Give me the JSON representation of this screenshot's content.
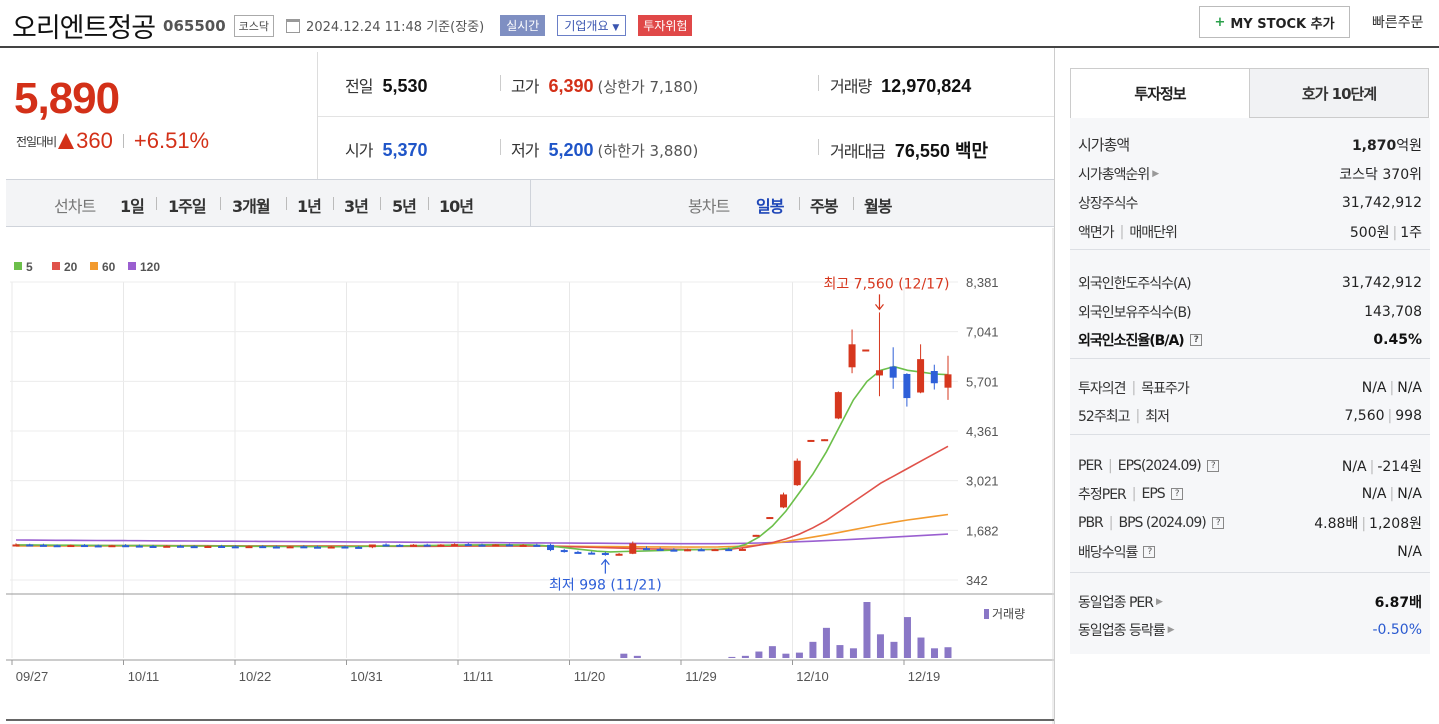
{
  "header": {
    "stock_name": "오리엔트정공",
    "stock_code": "065500",
    "market_tag": "코스닥",
    "datetime": "2024.12.24 11:48 기준(장중)",
    "realtime_tag": "실시간",
    "company_info_tag": "기업개요",
    "risk_tag": "투자위험",
    "mystock_button": "MY STOCK 추가",
    "quick_order": "빠른주문"
  },
  "price": {
    "current": "5,890",
    "change_label": "전일대비",
    "change_value": "360",
    "change_pct": "+6.51%"
  },
  "quote": {
    "prev_label": "전일",
    "prev": "5,530",
    "open_label": "시가",
    "open": "5,370",
    "high_label": "고가",
    "high": "6,390",
    "upper_limit": "(상한가 7,180)",
    "low_label": "저가",
    "low": "5,200",
    "lower_limit": "(하한가 3,880)",
    "volume_label": "거래량",
    "volume": "12,970,824",
    "amount_label": "거래대금",
    "amount": "76,550 백만"
  },
  "chart_tabs": {
    "line_label": "선차트",
    "line_options": [
      "1일",
      "1주일",
      "3개월",
      "1년",
      "3년",
      "5년",
      "10년"
    ],
    "candle_label": "봉차트",
    "candle_options": [
      "일봉",
      "주봉",
      "월봉"
    ],
    "candle_selected": "일봉"
  },
  "chart_data": {
    "type": "candlestick",
    "legend": [
      {
        "name": "5",
        "color": "#6cbf4a"
      },
      {
        "name": "20",
        "color": "#e0524a"
      },
      {
        "name": "60",
        "color": "#f29a2e"
      },
      {
        "name": "120",
        "color": "#9a5fd0"
      }
    ],
    "y_ticks": [
      "8,381",
      "7,041",
      "5,701",
      "4,361",
      "3,021",
      "1,682",
      "342"
    ],
    "ylim": [
      342,
      8381
    ],
    "x_ticks": [
      "09/27",
      "10/11",
      "10/22",
      "10/31",
      "11/11",
      "11/20",
      "11/29",
      "12/10",
      "12/19"
    ],
    "high_annotation": "최고 7,560 (12/17)",
    "low_annotation": "최저 998 (11/21)",
    "volume_label": "거래량",
    "candles": [
      {
        "o": 1280,
        "h": 1330,
        "l": 1250,
        "c": 1300
      },
      {
        "o": 1300,
        "h": 1320,
        "l": 1270,
        "c": 1290
      },
      {
        "o": 1290,
        "h": 1320,
        "l": 1260,
        "c": 1280
      },
      {
        "o": 1280,
        "h": 1300,
        "l": 1250,
        "c": 1270
      },
      {
        "o": 1270,
        "h": 1300,
        "l": 1240,
        "c": 1285
      },
      {
        "o": 1285,
        "h": 1310,
        "l": 1260,
        "c": 1275
      },
      {
        "o": 1275,
        "h": 1300,
        "l": 1240,
        "c": 1265
      },
      {
        "o": 1265,
        "h": 1290,
        "l": 1240,
        "c": 1280
      },
      {
        "o": 1280,
        "h": 1310,
        "l": 1250,
        "c": 1270
      },
      {
        "o": 1270,
        "h": 1300,
        "l": 1240,
        "c": 1260
      },
      {
        "o": 1260,
        "h": 1290,
        "l": 1230,
        "c": 1250
      },
      {
        "o": 1250,
        "h": 1280,
        "l": 1220,
        "c": 1265
      },
      {
        "o": 1265,
        "h": 1290,
        "l": 1240,
        "c": 1255
      },
      {
        "o": 1255,
        "h": 1280,
        "l": 1230,
        "c": 1245
      },
      {
        "o": 1245,
        "h": 1270,
        "l": 1220,
        "c": 1260
      },
      {
        "o": 1260,
        "h": 1290,
        "l": 1240,
        "c": 1250
      },
      {
        "o": 1250,
        "h": 1280,
        "l": 1220,
        "c": 1240
      },
      {
        "o": 1240,
        "h": 1270,
        "l": 1210,
        "c": 1255
      },
      {
        "o": 1255,
        "h": 1280,
        "l": 1230,
        "c": 1245
      },
      {
        "o": 1245,
        "h": 1270,
        "l": 1220,
        "c": 1235
      },
      {
        "o": 1235,
        "h": 1260,
        "l": 1210,
        "c": 1250
      },
      {
        "o": 1250,
        "h": 1280,
        "l": 1230,
        "c": 1240
      },
      {
        "o": 1240,
        "h": 1270,
        "l": 1210,
        "c": 1230
      },
      {
        "o": 1230,
        "h": 1260,
        "l": 1210,
        "c": 1245
      },
      {
        "o": 1245,
        "h": 1270,
        "l": 1220,
        "c": 1235
      },
      {
        "o": 1235,
        "h": 1260,
        "l": 1210,
        "c": 1225
      },
      {
        "o": 1225,
        "h": 1260,
        "l": 1200,
        "c": 1300
      },
      {
        "o": 1300,
        "h": 1330,
        "l": 1270,
        "c": 1290
      },
      {
        "o": 1290,
        "h": 1310,
        "l": 1260,
        "c": 1280
      },
      {
        "o": 1280,
        "h": 1310,
        "l": 1250,
        "c": 1295
      },
      {
        "o": 1295,
        "h": 1320,
        "l": 1270,
        "c": 1285
      },
      {
        "o": 1285,
        "h": 1310,
        "l": 1260,
        "c": 1300
      },
      {
        "o": 1300,
        "h": 1330,
        "l": 1280,
        "c": 1310
      },
      {
        "o": 1310,
        "h": 1340,
        "l": 1280,
        "c": 1295
      },
      {
        "o": 1295,
        "h": 1320,
        "l": 1270,
        "c": 1285
      },
      {
        "o": 1285,
        "h": 1310,
        "l": 1260,
        "c": 1300
      },
      {
        "o": 1300,
        "h": 1320,
        "l": 1270,
        "c": 1285
      },
      {
        "o": 1285,
        "h": 1310,
        "l": 1260,
        "c": 1290
      },
      {
        "o": 1290,
        "h": 1320,
        "l": 1260,
        "c": 1275
      },
      {
        "o": 1290,
        "h": 1320,
        "l": 1120,
        "c": 1150
      },
      {
        "o": 1150,
        "h": 1180,
        "l": 1080,
        "c": 1100
      },
      {
        "o": 1100,
        "h": 1130,
        "l": 1060,
        "c": 1080
      },
      {
        "o": 1080,
        "h": 1110,
        "l": 1040,
        "c": 1070
      },
      {
        "o": 1070,
        "h": 1100,
        "l": 998,
        "c": 1030
      },
      {
        "o": 1030,
        "h": 1070,
        "l": 1000,
        "c": 1050
      },
      {
        "o": 1050,
        "h": 1380,
        "l": 1040,
        "c": 1330
      },
      {
        "o": 1200,
        "h": 1250,
        "l": 1150,
        "c": 1180
      },
      {
        "o": 1180,
        "h": 1220,
        "l": 1140,
        "c": 1160
      },
      {
        "o": 1160,
        "h": 1200,
        "l": 1130,
        "c": 1150
      },
      {
        "o": 1150,
        "h": 1190,
        "l": 1120,
        "c": 1170
      },
      {
        "o": 1170,
        "h": 1200,
        "l": 1140,
        "c": 1160
      },
      {
        "o": 1160,
        "h": 1190,
        "l": 1130,
        "c": 1175
      },
      {
        "o": 1175,
        "h": 1210,
        "l": 1150,
        "c": 1170
      },
      {
        "o": 1170,
        "h": 1200,
        "l": 1140,
        "c": 1180
      },
      {
        "o": 1550,
        "h": 1560,
        "l": 1540,
        "c": 1560
      },
      {
        "o": 2030,
        "h": 2040,
        "l": 2020,
        "c": 2040
      },
      {
        "o": 2300,
        "h": 2700,
        "l": 2280,
        "c": 2650
      },
      {
        "o": 2900,
        "h": 3620,
        "l": 2880,
        "c": 3560
      },
      {
        "o": 4100,
        "h": 4120,
        "l": 4090,
        "c": 4120
      },
      {
        "o": 4120,
        "h": 4140,
        "l": 4110,
        "c": 4140
      },
      {
        "o": 4700,
        "h": 5430,
        "l": 4680,
        "c": 5410
      },
      {
        "o": 6080,
        "h": 7100,
        "l": 5920,
        "c": 6700
      },
      {
        "o": 6530,
        "h": 6560,
        "l": 6510,
        "c": 6560
      },
      {
        "o": 5860,
        "h": 7560,
        "l": 5300,
        "c": 6000
      },
      {
        "o": 6100,
        "h": 6620,
        "l": 5500,
        "c": 5800
      },
      {
        "o": 5900,
        "h": 5920,
        "l": 5020,
        "c": 5250
      },
      {
        "o": 5400,
        "h": 6700,
        "l": 5380,
        "c": 6300
      },
      {
        "o": 5980,
        "h": 6150,
        "l": 5480,
        "c": 5650
      },
      {
        "o": 5530,
        "h": 6390,
        "l": 5200,
        "c": 5890
      }
    ],
    "ma5": [
      1290,
      1288,
      1285,
      1282,
      1280,
      1278,
      1276,
      1274,
      1272,
      1270,
      1268,
      1265,
      1262,
      1260,
      1258,
      1256,
      1254,
      1252,
      1250,
      1248,
      1246,
      1244,
      1242,
      1240,
      1240,
      1245,
      1250,
      1255,
      1260,
      1265,
      1270,
      1275,
      1280,
      1285,
      1290,
      1292,
      1292,
      1290,
      1288,
      1270,
      1240,
      1200,
      1160,
      1120,
      1100,
      1110,
      1120,
      1130,
      1140,
      1150,
      1160,
      1165,
      1170,
      1200,
      1300,
      1500,
      1800,
      2200,
      2700,
      3200,
      3800,
      4500,
      5200,
      5700,
      6000,
      6100,
      6000,
      5950,
      5900,
      5880
    ],
    "ma20": [
      1280,
      1279,
      1278,
      1277,
      1276,
      1275,
      1274,
      1273,
      1272,
      1271,
      1270,
      1269,
      1268,
      1267,
      1266,
      1265,
      1264,
      1263,
      1262,
      1261,
      1260,
      1259,
      1258,
      1257,
      1256,
      1255,
      1254,
      1253,
      1252,
      1251,
      1250,
      1252,
      1254,
      1256,
      1258,
      1260,
      1262,
      1262,
      1262,
      1258,
      1250,
      1240,
      1230,
      1220,
      1210,
      1200,
      1190,
      1180,
      1175,
      1170,
      1165,
      1165,
      1168,
      1180,
      1220,
      1280,
      1350,
      1450,
      1580,
      1750,
      1950,
      2200,
      2450,
      2700,
      2950,
      3150,
      3350,
      3550,
      3750,
      3950
    ],
    "ma60": [
      1260,
      1260,
      1260,
      1260,
      1260,
      1260,
      1260,
      1260,
      1260,
      1260,
      1260,
      1260,
      1260,
      1260,
      1260,
      1260,
      1260,
      1260,
      1260,
      1260,
      1260,
      1260,
      1260,
      1260,
      1260,
      1260,
      1260,
      1260,
      1260,
      1260,
      1260,
      1260,
      1260,
      1260,
      1260,
      1260,
      1260,
      1260,
      1260,
      1258,
      1255,
      1252,
      1249,
      1246,
      1243,
      1240,
      1238,
      1236,
      1234,
      1232,
      1230,
      1232,
      1236,
      1245,
      1260,
      1290,
      1330,
      1380,
      1440,
      1500,
      1560,
      1630,
      1700,
      1770,
      1840,
      1900,
      1960,
      2010,
      2060,
      2110
    ],
    "ma120": [
      1420,
      1418,
      1416,
      1414,
      1412,
      1410,
      1408,
      1406,
      1404,
      1402,
      1400,
      1398,
      1396,
      1394,
      1392,
      1390,
      1388,
      1386,
      1384,
      1382,
      1380,
      1378,
      1376,
      1374,
      1372,
      1370,
      1368,
      1366,
      1364,
      1362,
      1360,
      1358,
      1356,
      1354,
      1352,
      1350,
      1348,
      1346,
      1344,
      1342,
      1340,
      1338,
      1336,
      1334,
      1332,
      1330,
      1328,
      1326,
      1324,
      1322,
      1320,
      1320,
      1322,
      1326,
      1332,
      1340,
      1350,
      1362,
      1375,
      1390,
      1405,
      1420,
      1440,
      1460,
      1480,
      1500,
      1520,
      1540,
      1560,
      1580
    ],
    "volumes": [
      0,
      0,
      0,
      0,
      0,
      0,
      0,
      0,
      0,
      0,
      0,
      0,
      0,
      0,
      0,
      0,
      0,
      0,
      0,
      0,
      0,
      0,
      0,
      0,
      0,
      0,
      0,
      0,
      0,
      0,
      0,
      0,
      0,
      0,
      0,
      0,
      0,
      0,
      0,
      0,
      0,
      0,
      0,
      0,
      0,
      4,
      2,
      0,
      0,
      0,
      0,
      0,
      0,
      1,
      2,
      6,
      11,
      4,
      5,
      15,
      28,
      12,
      9,
      52,
      22,
      15,
      38,
      19,
      9,
      10
    ]
  },
  "invest_panel": {
    "tab_active": "투자정보",
    "tab_other": "호가 10단계",
    "rows1": [
      {
        "k": "시가총액",
        "v_num": "1,870",
        "v_unit": "억원"
      },
      {
        "k": "시가총액순위",
        "v": "코스닥 370위"
      },
      {
        "k": "상장주식수",
        "v": "31,742,912"
      },
      {
        "k1": "액면가",
        "k2": "매매단위",
        "v1": "500원",
        "v2": "1주"
      }
    ],
    "rows2": [
      {
        "k": "외국인한도주식수(A)",
        "v": "31,742,912"
      },
      {
        "k": "외국인보유주식수(B)",
        "v": "143,708"
      },
      {
        "k": "외국인소진율(B/A)",
        "v": "0.45%"
      }
    ],
    "rows3": [
      {
        "k1": "투자의견",
        "k2": "목표주가",
        "v1": "N/A",
        "v2": "N/A"
      },
      {
        "k1": "52주최고",
        "k2": "최저",
        "v1": "7,560",
        "v2": "998"
      }
    ],
    "rows4": [
      {
        "k1": "PER",
        "k2": "EPS(2024.09)",
        "v1": "N/A",
        "v2": "-214원"
      },
      {
        "k1": "추정PER",
        "k2": "EPS",
        "v1": "N/A",
        "v2": "N/A"
      },
      {
        "k1": "PBR",
        "k2": "BPS (2024.09)",
        "v1": "4.88배",
        "v2": "1,208원"
      },
      {
        "k": "배당수익률",
        "v": "N/A"
      }
    ],
    "rows5": [
      {
        "k": "동일업종 PER",
        "v": "6.87배"
      },
      {
        "k": "동일업종 등락률",
        "v": "-0.50%"
      }
    ]
  }
}
